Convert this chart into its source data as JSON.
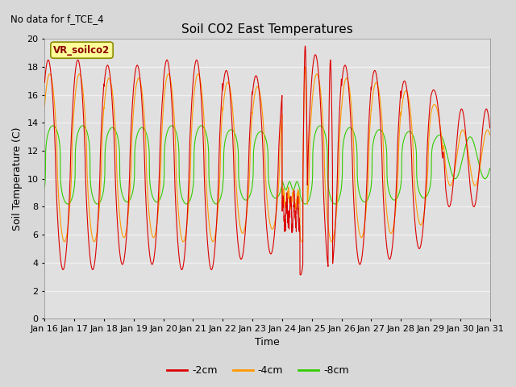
{
  "title": "Soil CO2 East Temperatures",
  "no_data_text": "No data for f_TCE_4",
  "legend_label_text": "VR_soilco2",
  "xlabel": "Time",
  "ylabel": "Soil Temperature (C)",
  "ylim": [
    0,
    20
  ],
  "xlim": [
    0,
    15
  ],
  "tick_labels": [
    "Jan 16",
    "Jan 17",
    "Jan 18",
    "Jan 19",
    "Jan 20",
    "Jan 21",
    "Jan 22",
    "Jan 23",
    "Jan 24",
    "Jan 25",
    "Jan 26",
    "Jan 27",
    "Jan 28",
    "Jan 29",
    "Jan 30",
    "Jan 31"
  ],
  "line_colors": {
    "-2cm": "#dd0000",
    "-4cm": "#ff9900",
    "-8cm": "#33cc00"
  },
  "fig_bg_color": "#d8d8d8",
  "plot_bg_color": "#e0e0e0",
  "legend_entries": [
    "-2cm",
    "-4cm",
    "-8cm"
  ],
  "grid_color": "#f0f0f0"
}
